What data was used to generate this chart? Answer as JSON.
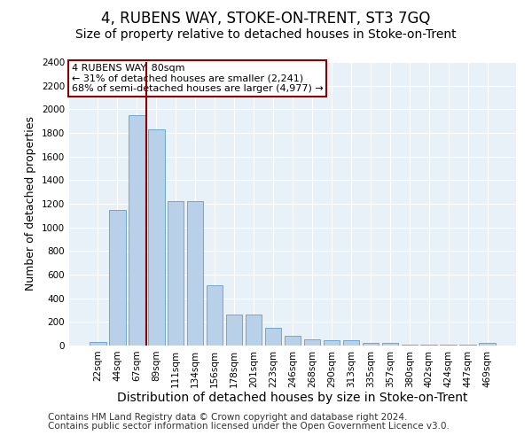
{
  "title": "4, RUBENS WAY, STOKE-ON-TRENT, ST3 7GQ",
  "subtitle": "Size of property relative to detached houses in Stoke-on-Trent",
  "xlabel": "Distribution of detached houses by size in Stoke-on-Trent",
  "ylabel": "Number of detached properties",
  "categories": [
    "22sqm",
    "44sqm",
    "67sqm",
    "89sqm",
    "111sqm",
    "134sqm",
    "156sqm",
    "178sqm",
    "201sqm",
    "223sqm",
    "246sqm",
    "268sqm",
    "290sqm",
    "313sqm",
    "335sqm",
    "357sqm",
    "380sqm",
    "402sqm",
    "424sqm",
    "447sqm",
    "469sqm"
  ],
  "values": [
    30,
    1150,
    1950,
    1830,
    1220,
    1220,
    510,
    265,
    265,
    150,
    80,
    50,
    45,
    45,
    20,
    20,
    10,
    10,
    10,
    5,
    20
  ],
  "bar_color": "#b8d0e8",
  "bar_edge_color": "#6aaad4",
  "vline_color": "#8b0000",
  "annotation_box_color": "#8b0000",
  "ylim": [
    0,
    2400
  ],
  "yticks": [
    0,
    200,
    400,
    600,
    800,
    1000,
    1200,
    1400,
    1600,
    1800,
    2000,
    2200,
    2400
  ],
  "footer_line1": "Contains HM Land Registry data © Crown copyright and database right 2024.",
  "footer_line2": "Contains public sector information licensed under the Open Government Licence v3.0.",
  "plot_bg_color": "#e8f0f8",
  "title_fontsize": 12,
  "subtitle_fontsize": 10,
  "ylabel_fontsize": 9,
  "tick_fontsize": 7.5,
  "footer_fontsize": 7.5,
  "xlabel_fontsize": 10
}
